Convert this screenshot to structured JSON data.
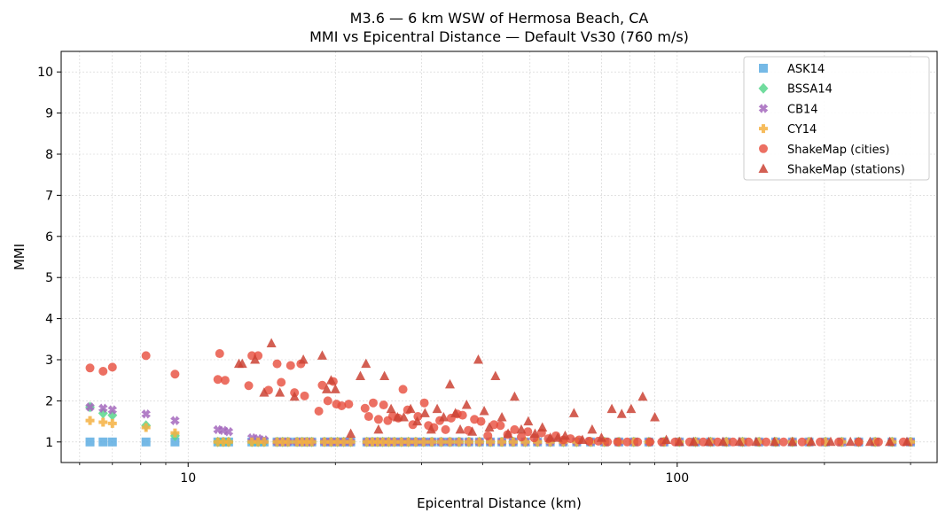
{
  "chart_data": {
    "type": "scatter",
    "title": "M3.6 — 6 km WSW of Hermosa Beach, CA",
    "subtitle": "MMI vs Epicentral Distance — Default Vs30 (760 m/s)",
    "xlabel": "Epicentral Distance (km)",
    "ylabel": "MMI",
    "xscale": "log",
    "xlim": [
      5.5,
      340
    ],
    "ylim": [
      0.5,
      10.5
    ],
    "x_ticks": [
      10,
      100
    ],
    "x_tick_labels": [
      "10",
      "100"
    ],
    "y_ticks": [
      1,
      2,
      3,
      4,
      5,
      6,
      7,
      8,
      9,
      10
    ],
    "y_tick_labels": [
      "1",
      "2",
      "3",
      "4",
      "5",
      "6",
      "7",
      "8",
      "9",
      "10"
    ],
    "grid": true,
    "legend_position": "top-right",
    "series": [
      {
        "name": "ASK14",
        "marker": "square",
        "color": "#5dade2",
        "x": [
          6.3,
          6.7,
          7.0,
          8.2,
          9.4,
          11.5,
          11.8,
          12.1,
          13.5,
          13.9,
          14.3,
          15.2,
          15.6,
          16.0,
          16.7,
          17.1,
          17.5,
          17.9,
          19.0,
          19.6,
          20.2,
          20.8,
          21.5,
          23.2,
          23.8,
          24.4,
          25.0,
          25.7,
          26.4,
          27.3,
          28.2,
          29.2,
          30.3,
          31.5,
          32.9,
          34.3,
          35.8,
          37.5,
          39.4,
          41.5,
          43.8,
          46.2,
          48.9,
          51.8,
          55.0,
          58.5,
          62.3,
          66.5,
          71.0,
          76.0,
          81.5,
          87.5,
          94.0,
          101,
          109,
          117,
          126,
          136,
          147,
          159,
          172,
          186,
          201,
          217,
          235,
          254,
          275,
          300
        ],
        "y": [
          1,
          1,
          1,
          1,
          1,
          1,
          1,
          1,
          1,
          1,
          1,
          1,
          1,
          1,
          1,
          1,
          1,
          1,
          1,
          1,
          1,
          1,
          1,
          1,
          1,
          1,
          1,
          1,
          1,
          1,
          1,
          1,
          1,
          1,
          1,
          1,
          1,
          1,
          1,
          1,
          1,
          1,
          1,
          1,
          1,
          1,
          1,
          1,
          1,
          1,
          1,
          1,
          1,
          1,
          1,
          1,
          1,
          1,
          1,
          1,
          1,
          1,
          1,
          1,
          1,
          1,
          1,
          1
        ]
      },
      {
        "name": "BSSA14",
        "marker": "diamond",
        "color": "#58d68d",
        "x": [
          6.3,
          6.7,
          7.0,
          8.2,
          9.4,
          11.5,
          11.8,
          12.1,
          13.5,
          13.9,
          14.3,
          15.2,
          15.6,
          16.0,
          16.7,
          17.1,
          17.5,
          17.9,
          19.0,
          19.6,
          20.2,
          20.8,
          21.5,
          23.2,
          23.8,
          24.4,
          25.0,
          25.7,
          26.4,
          27.3,
          28.2,
          29.2,
          30.3,
          31.5,
          32.9,
          34.3,
          35.8,
          37.5,
          39.4,
          41.5,
          43.8,
          46.2,
          48.9,
          51.8,
          55.0,
          58.5,
          62.3,
          66.5,
          71.0,
          76.0,
          81.5,
          87.5,
          94.0,
          101,
          109,
          117,
          126,
          136,
          147,
          159,
          172,
          186,
          201,
          217,
          235,
          254,
          275,
          300
        ],
        "y": [
          1.85,
          1.7,
          1.65,
          1.4,
          1.15,
          1,
          1,
          1,
          1,
          1,
          1,
          1,
          1,
          1,
          1,
          1,
          1,
          1,
          1,
          1,
          1,
          1,
          1,
          1,
          1,
          1,
          1,
          1,
          1,
          1,
          1,
          1,
          1,
          1,
          1,
          1,
          1,
          1,
          1,
          1,
          1,
          1,
          1,
          1,
          1,
          1,
          1,
          1,
          1,
          1,
          1,
          1,
          1,
          1,
          1,
          1,
          1,
          1,
          1,
          1,
          1,
          1,
          1,
          1,
          1,
          1,
          1,
          1
        ]
      },
      {
        "name": "CB14",
        "marker": "x",
        "color": "#a569bd",
        "x": [
          6.3,
          6.7,
          7.0,
          8.2,
          9.4,
          11.5,
          11.8,
          12.1,
          13.5,
          13.9,
          14.3,
          15.2,
          15.6,
          16.0,
          16.7,
          17.1,
          17.5,
          17.9,
          19.0,
          19.6,
          20.2,
          20.8,
          21.5,
          23.2,
          23.8,
          24.4,
          25.0,
          25.7,
          26.4,
          27.3,
          28.2,
          29.2,
          30.3,
          31.5,
          32.9,
          34.3,
          35.8,
          37.5,
          39.4,
          41.5,
          43.8,
          46.2,
          48.9,
          51.8,
          55.0,
          58.5,
          62.3,
          66.5,
          71.0,
          76.0,
          81.5,
          87.5,
          94.0,
          101,
          109,
          117,
          126,
          136,
          147,
          159,
          172,
          186,
          201,
          217,
          235,
          254,
          275,
          300
        ],
        "y": [
          1.85,
          1.82,
          1.78,
          1.68,
          1.52,
          1.3,
          1.28,
          1.25,
          1.1,
          1.08,
          1.05,
          1,
          1,
          1,
          1,
          1,
          1,
          1,
          1,
          1,
          1,
          1,
          1,
          1,
          1,
          1,
          1,
          1,
          1,
          1,
          1,
          1,
          1,
          1,
          1,
          1,
          1,
          1,
          1,
          1,
          1,
          1,
          1,
          1,
          1,
          1,
          1,
          1,
          1,
          1,
          1,
          1,
          1,
          1,
          1,
          1,
          1,
          1,
          1,
          1,
          1,
          1,
          1,
          1,
          1,
          1,
          1,
          1
        ]
      },
      {
        "name": "CY14",
        "marker": "plus",
        "color": "#f5b041",
        "x": [
          6.3,
          6.7,
          7.0,
          8.2,
          9.4,
          11.5,
          11.8,
          12.1,
          13.5,
          13.9,
          14.3,
          15.2,
          15.6,
          16.0,
          16.7,
          17.1,
          17.5,
          17.9,
          19.0,
          19.6,
          20.2,
          20.8,
          21.5,
          23.2,
          23.8,
          24.4,
          25.0,
          25.7,
          26.4,
          27.3,
          28.2,
          29.2,
          30.3,
          31.5,
          32.9,
          34.3,
          35.8,
          37.5,
          39.4,
          41.5,
          43.8,
          46.2,
          48.9,
          51.8,
          55.0,
          58.5,
          62.3,
          66.5,
          71.0,
          76.0,
          81.5,
          87.5,
          94.0,
          101,
          109,
          117,
          126,
          136,
          147,
          159,
          172,
          186,
          201,
          217,
          235,
          254,
          275,
          300
        ],
        "y": [
          1.52,
          1.48,
          1.45,
          1.35,
          1.22,
          1,
          1,
          1,
          1,
          1,
          1,
          1,
          1,
          1,
          1,
          1,
          1,
          1,
          1,
          1,
          1,
          1,
          1,
          1,
          1,
          1,
          1,
          1,
          1,
          1,
          1,
          1,
          1,
          1,
          1,
          1,
          1,
          1,
          1,
          1,
          1,
          1,
          1,
          1,
          1,
          1,
          1,
          1,
          1,
          1,
          1,
          1,
          1,
          1,
          1,
          1,
          1,
          1,
          1,
          1,
          1,
          1,
          1,
          1,
          1,
          1,
          1,
          1
        ]
      },
      {
        "name": "ShakeMap (cities)",
        "marker": "circle",
        "color": "#e74c3c",
        "x": [
          6.3,
          6.7,
          7.0,
          8.2,
          9.4,
          11.5,
          11.6,
          11.9,
          13.3,
          13.5,
          13.9,
          14.6,
          15.2,
          15.5,
          16.2,
          16.5,
          17.0,
          17.3,
          18.5,
          18.8,
          19.3,
          19.8,
          20.1,
          20.6,
          21.3,
          23.0,
          23.4,
          23.9,
          24.5,
          25.1,
          25.6,
          26.2,
          26.9,
          27.5,
          28.1,
          28.8,
          29.5,
          30.4,
          31.0,
          31.8,
          32.7,
          33.6,
          34.5,
          35.5,
          36.4,
          37.4,
          38.5,
          39.7,
          41.0,
          42.2,
          43.5,
          45.0,
          46.5,
          48.0,
          49.5,
          51.0,
          52.8,
          54.5,
          56.5,
          58.5,
          60.5,
          63.0,
          66.0,
          69.0,
          72.0,
          75.5,
          79.0,
          83.0,
          88.0,
          93.0,
          99.0,
          106,
          113,
          121,
          130,
          140,
          152,
          165,
          180,
          196,
          214,
          235,
          258,
          290
        ],
        "y": [
          2.8,
          2.72,
          2.82,
          3.1,
          2.65,
          2.52,
          3.15,
          2.5,
          2.37,
          3.1,
          3.1,
          2.26,
          2.9,
          2.45,
          2.86,
          2.2,
          2.9,
          2.12,
          1.75,
          2.38,
          2.0,
          2.47,
          1.92,
          1.88,
          1.92,
          1.82,
          1.62,
          1.95,
          1.55,
          1.9,
          1.52,
          1.63,
          1.58,
          2.28,
          1.78,
          1.42,
          1.62,
          1.95,
          1.4,
          1.35,
          1.52,
          1.3,
          1.58,
          1.68,
          1.65,
          1.28,
          1.55,
          1.5,
          1.15,
          1.42,
          1.4,
          1.18,
          1.3,
          1.12,
          1.25,
          1.1,
          1.22,
          1.08,
          1.15,
          1.05,
          1.08,
          1.05,
          1.02,
          1.02,
          1.0,
          1.0,
          1.0,
          1.0,
          1.0,
          1.0,
          1.0,
          1.0,
          1.0,
          1.0,
          1.0,
          1.0,
          1.0,
          1.0,
          1.0,
          1.0,
          1.0,
          1.0,
          1.0,
          1.0
        ]
      },
      {
        "name": "ShakeMap (stations)",
        "marker": "triangle",
        "color": "#cb4335",
        "x": [
          12.7,
          12.9,
          13.7,
          14.3,
          14.8,
          15.4,
          16.5,
          17.2,
          18.8,
          19.2,
          19.6,
          20.0,
          21.5,
          22.5,
          23.1,
          24.5,
          25.2,
          26.0,
          26.8,
          27.6,
          28.5,
          29.4,
          30.5,
          31.4,
          32.3,
          33.3,
          34.3,
          35.2,
          36.0,
          37.1,
          38.1,
          39.2,
          40.3,
          41.3,
          42.5,
          43.8,
          45.1,
          46.5,
          48.0,
          49.6,
          51.2,
          53.0,
          55.0,
          57.0,
          59.0,
          61.5,
          64.0,
          67.0,
          70.0,
          73.5,
          77.0,
          80.5,
          85.0,
          90.0,
          95.0,
          101,
          108,
          116,
          124,
          134,
          145,
          158,
          172,
          188,
          206,
          226,
          248,
          272,
          295
        ],
        "y": [
          2.9,
          2.9,
          3.0,
          2.2,
          3.4,
          2.2,
          2.1,
          3.0,
          3.1,
          2.28,
          2.5,
          2.28,
          1.2,
          2.6,
          2.9,
          1.3,
          2.6,
          1.8,
          1.6,
          1.6,
          1.8,
          1.5,
          1.7,
          1.3,
          1.8,
          1.6,
          2.4,
          1.7,
          1.3,
          1.9,
          1.25,
          3.0,
          1.75,
          1.35,
          2.6,
          1.6,
          1.2,
          2.1,
          1.3,
          1.5,
          1.2,
          1.35,
          1.1,
          1.1,
          1.15,
          1.7,
          1.05,
          1.3,
          1.1,
          1.8,
          1.68,
          1.8,
          2.1,
          1.6,
          1.05,
          1.0,
          1.0,
          1.0,
          1.0,
          1.0,
          1.0,
          1.0,
          1.0,
          1.0,
          1.0,
          1.0,
          1.0,
          1.0,
          1.0
        ]
      }
    ]
  }
}
